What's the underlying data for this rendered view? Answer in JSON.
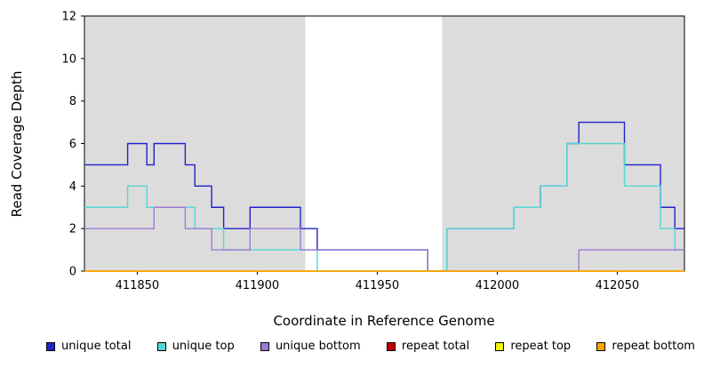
{
  "chart_data": {
    "type": "line",
    "subtype": "step-coverage",
    "title": "",
    "xlabel": "Coordinate in Reference Genome",
    "ylabel": "Read Coverage Depth",
    "xlim": [
      411828,
      412078
    ],
    "ylim": [
      0,
      12
    ],
    "x_ticks": [
      411850,
      411900,
      411950,
      412000,
      412050
    ],
    "y_ticks": [
      0,
      2,
      4,
      6,
      8,
      10,
      12
    ],
    "grid": false,
    "legend_position": "bottom",
    "shade_color": "#dcdcdc",
    "shaded_regions": [
      {
        "x0": 411828,
        "x1": 411920
      },
      {
        "x0": 411977,
        "x1": 412078
      }
    ],
    "series": [
      {
        "name": "unique total",
        "color": "#2222cc",
        "points": [
          [
            411828,
            5
          ],
          [
            411846,
            6
          ],
          [
            411854,
            5
          ],
          [
            411857,
            6
          ],
          [
            411870,
            5
          ],
          [
            411874,
            4
          ],
          [
            411881,
            3
          ],
          [
            411886,
            2
          ],
          [
            411897,
            3
          ],
          [
            411918,
            2
          ],
          [
            411925,
            1
          ],
          [
            411971,
            0
          ],
          [
            411979,
            2
          ],
          [
            412007,
            3
          ],
          [
            412018,
            4
          ],
          [
            412029,
            6
          ],
          [
            412034,
            7
          ],
          [
            412053,
            5
          ],
          [
            412068,
            3
          ],
          [
            412074,
            2
          ]
        ]
      },
      {
        "name": "unique top",
        "color": "#55d6d6",
        "points": [
          [
            411828,
            3
          ],
          [
            411846,
            4
          ],
          [
            411854,
            3
          ],
          [
            411874,
            2
          ],
          [
            411886,
            1
          ],
          [
            411925,
            0
          ],
          [
            411979,
            2
          ],
          [
            412007,
            3
          ],
          [
            412018,
            4
          ],
          [
            412029,
            6
          ],
          [
            412053,
            4
          ],
          [
            412068,
            2
          ],
          [
            412074,
            1
          ]
        ]
      },
      {
        "name": "unique bottom",
        "color": "#9b7bd4",
        "points": [
          [
            411828,
            2
          ],
          [
            411857,
            3
          ],
          [
            411870,
            2
          ],
          [
            411881,
            1
          ],
          [
            411897,
            2
          ],
          [
            411918,
            1
          ],
          [
            411971,
            0
          ],
          [
            412034,
            1
          ]
        ]
      },
      {
        "name": "repeat total",
        "color": "#c00000",
        "points": [
          [
            411828,
            0
          ]
        ]
      },
      {
        "name": "repeat top",
        "color": "#f2f20c",
        "points": [
          [
            411828,
            0
          ]
        ]
      },
      {
        "name": "repeat bottom",
        "color": "#ffa500",
        "points": [
          [
            411828,
            0
          ]
        ]
      }
    ]
  }
}
